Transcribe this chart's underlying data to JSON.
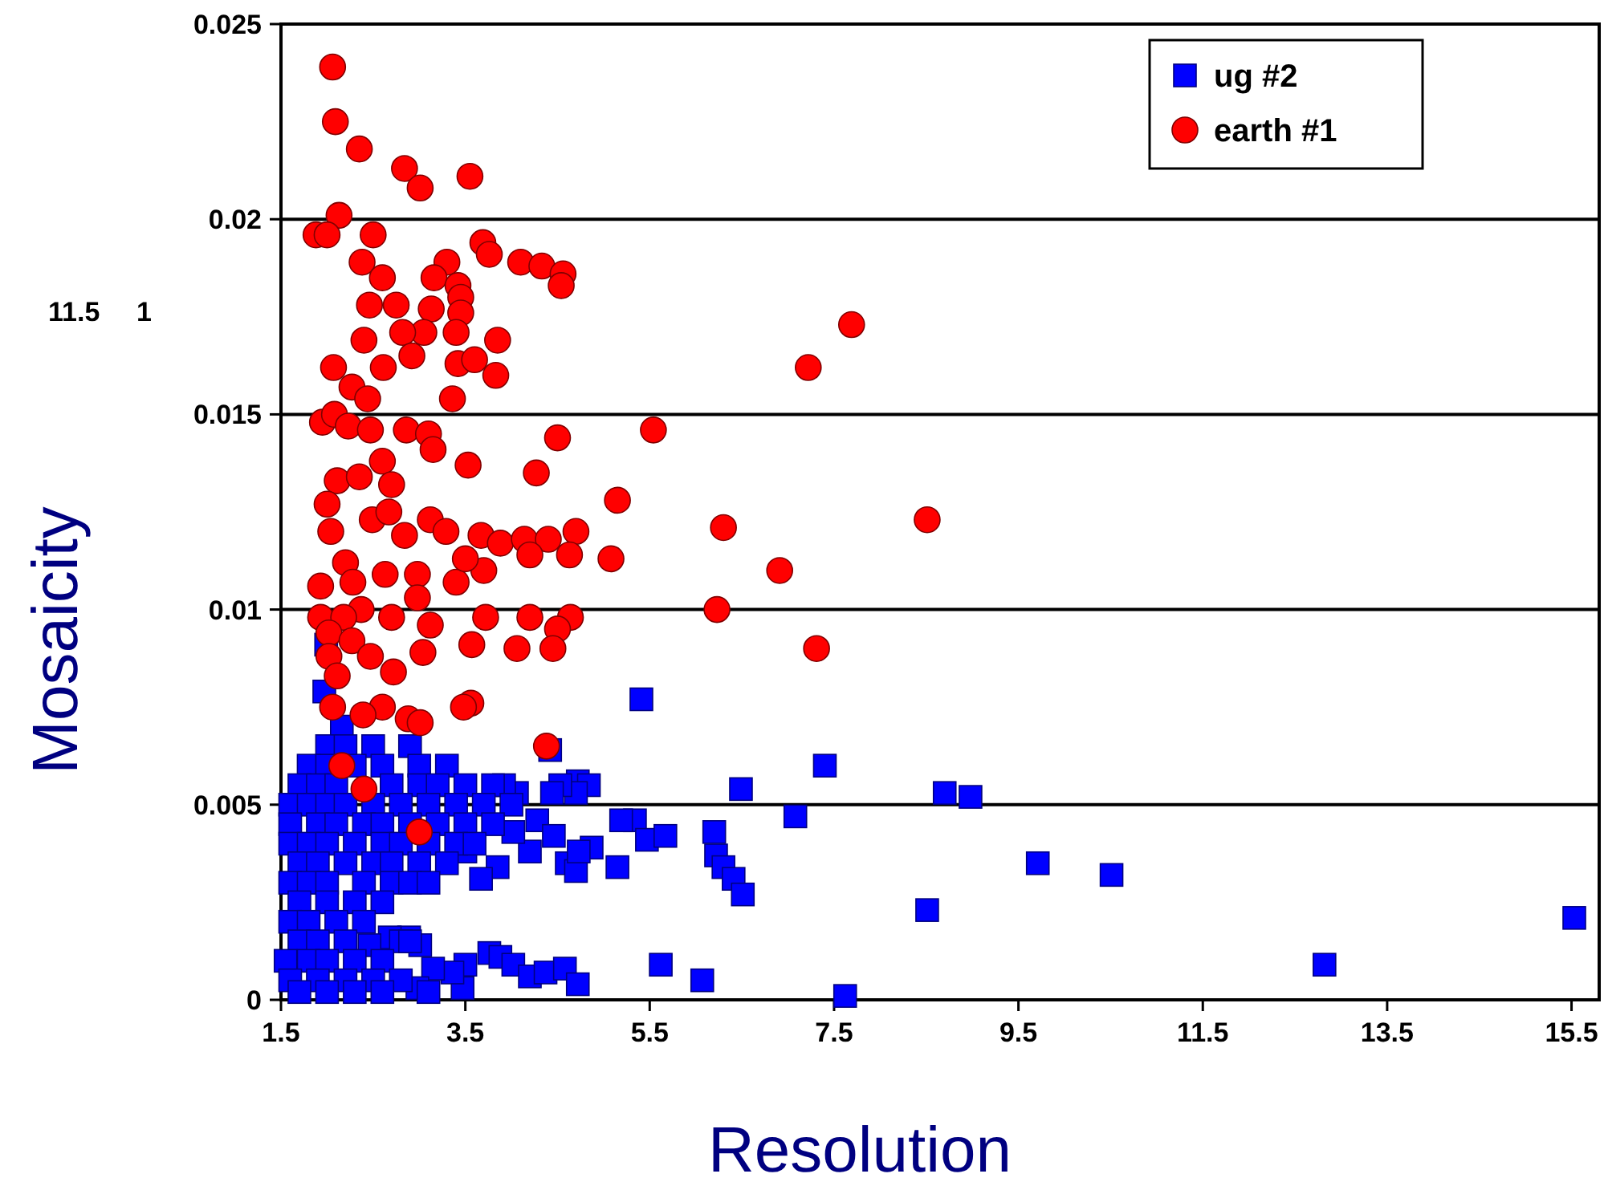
{
  "chart_data": {
    "type": "scatter",
    "xlabel": "Resolution",
    "ylabel": "Mosaicity",
    "xlim": [
      1.5,
      15.8
    ],
    "ylim": [
      0,
      0.025
    ],
    "xticks": [
      1.5,
      3.5,
      5.5,
      7.5,
      9.5,
      11.5,
      13.5,
      15.5
    ],
    "yticks": [
      0,
      0.005,
      0.01,
      0.015,
      0.02,
      0.025
    ],
    "grid": "y",
    "legend": "top right",
    "annotations": [
      "11.5",
      "1"
    ],
    "series": [
      {
        "name": "ug #2",
        "color": "#0000ff",
        "marker": "square",
        "x": [
          5.41,
          7.4,
          6.49,
          8.7,
          8.98,
          7.08,
          6.2,
          6.22,
          6.3,
          6.41,
          6.51,
          9.71,
          10.51,
          8.51,
          15.53,
          12.82,
          5.62,
          6.07,
          7.62,
          5.34,
          5.47,
          5.67,
          5.15,
          4.87,
          4.6,
          4.7,
          4.73,
          5.19,
          4.72,
          4.84,
          4.7,
          4.53,
          4.44,
          4.28,
          4.06,
          3.92,
          4.46,
          4.2,
          4.02,
          3.85,
          3.67,
          3.5,
          3.76,
          3.88,
          4.02,
          4.2,
          4.37,
          4.58,
          4.72,
          3.5,
          3.47,
          3.36,
          3.15,
          3.01,
          2.89,
          2.68,
          2.46,
          2.98,
          1.99,
          1.97,
          2.16,
          4.42,
          2.0,
          2.2,
          2.5,
          2.9,
          1.8,
          2.0,
          2.3,
          2.6,
          3.0,
          3.3,
          1.7,
          1.9,
          2.1,
          2.7,
          3.0,
          3.2,
          3.5,
          3.8,
          1.6,
          1.8,
          2.0,
          2.2,
          2.5,
          2.8,
          3.1,
          3.4,
          3.7,
          4.0,
          1.6,
          1.9,
          2.1,
          2.4,
          2.6,
          2.9,
          3.2,
          3.5,
          3.8,
          1.6,
          1.8,
          2.0,
          2.3,
          2.6,
          2.8,
          3.1,
          3.4,
          3.6,
          1.7,
          1.9,
          2.2,
          2.5,
          2.7,
          3.0,
          3.3,
          1.6,
          1.8,
          2.0,
          2.4,
          2.7,
          2.9,
          3.1,
          1.7,
          2.0,
          2.3,
          2.6,
          1.6,
          1.8,
          2.1,
          2.4,
          1.7,
          1.9,
          2.2,
          2.8,
          2.9,
          1.55,
          1.8,
          2.0,
          2.3,
          2.6,
          1.6,
          1.9,
          2.2,
          2.5,
          2.8,
          1.7,
          2.0,
          2.3,
          2.6,
          3.1
        ],
        "values": [
          0.0077,
          0.006,
          0.0054,
          0.0053,
          0.0052,
          0.0047,
          0.0043,
          0.0037,
          0.0034,
          0.0031,
          0.0027,
          0.0035,
          0.0032,
          0.0023,
          0.0021,
          0.0009,
          0.0009,
          0.0005,
          0.0001,
          0.0046,
          0.0041,
          0.0042,
          0.0034,
          0.0039,
          0.0035,
          0.0033,
          0.0038,
          0.0046,
          0.0056,
          0.0055,
          0.0053,
          0.0055,
          0.0053,
          0.0046,
          0.0053,
          0.0055,
          0.0042,
          0.0038,
          0.0043,
          0.0034,
          0.0031,
          0.0038,
          0.0012,
          0.0011,
          0.0009,
          0.0006,
          0.0007,
          0.0008,
          0.0004,
          0.0009,
          0.0003,
          0.0007,
          0.0008,
          0.0014,
          0.0016,
          0.0016,
          0.0014,
          0.0003,
          0.0091,
          0.0079,
          0.007,
          0.0064,
          0.0065,
          0.0065,
          0.0065,
          0.0065,
          0.006,
          0.006,
          0.006,
          0.006,
          0.006,
          0.006,
          0.0055,
          0.0055,
          0.0055,
          0.0055,
          0.0055,
          0.0055,
          0.0055,
          0.0055,
          0.005,
          0.005,
          0.005,
          0.005,
          0.005,
          0.005,
          0.005,
          0.005,
          0.005,
          0.005,
          0.0045,
          0.0045,
          0.0045,
          0.0045,
          0.0045,
          0.0045,
          0.0045,
          0.0045,
          0.0045,
          0.004,
          0.004,
          0.004,
          0.004,
          0.004,
          0.004,
          0.004,
          0.004,
          0.004,
          0.0035,
          0.0035,
          0.0035,
          0.0035,
          0.0035,
          0.0035,
          0.0035,
          0.003,
          0.003,
          0.003,
          0.003,
          0.003,
          0.003,
          0.003,
          0.0025,
          0.0025,
          0.0025,
          0.0025,
          0.002,
          0.002,
          0.002,
          0.002,
          0.0015,
          0.0015,
          0.0015,
          0.0015,
          0.0015,
          0.001,
          0.001,
          0.001,
          0.001,
          0.001,
          0.0005,
          0.0005,
          0.0005,
          0.0005,
          0.0005,
          0.0002,
          0.0002,
          0.0002,
          0.0002,
          0.0002
        ]
      },
      {
        "name": "earth #1",
        "color": "#ff0000",
        "marker": "circle",
        "x": [
          2.06,
          2.09,
          2.35,
          2.84,
          3.01,
          3.55,
          2.13,
          1.88,
          2.0,
          2.5,
          3.69,
          3.76,
          2.38,
          2.6,
          3.3,
          3.16,
          3.42,
          3.45,
          4.1,
          4.33,
          4.56,
          4.54,
          2.46,
          2.75,
          3.13,
          3.45,
          3.05,
          2.82,
          3.4,
          3.85,
          2.4,
          2.61,
          2.92,
          3.42,
          3.6,
          2.07,
          2.27,
          3.36,
          3.83,
          2.44,
          1.95,
          2.08,
          2.23,
          2.47,
          2.86,
          3.1,
          4.5,
          3.53,
          2.6,
          4.27,
          3.15,
          2.11,
          2.35,
          2.7,
          5.15,
          7.22,
          7.69,
          5.54,
          8.51,
          6.3,
          6.91,
          6.23,
          7.31,
          2.0,
          2.04,
          2.2,
          2.49,
          2.67,
          2.84,
          3.12,
          3.29,
          3.67,
          3.88,
          4.14,
          4.4,
          4.7,
          5.08,
          4.63,
          4.2,
          1.93,
          2.28,
          2.63,
          2.98,
          3.4,
          3.7,
          3.5,
          2.98,
          2.37,
          1.93,
          2.18,
          2.7,
          3.12,
          3.72,
          4.2,
          4.64,
          4.5,
          4.45,
          2.02,
          2.27,
          2.47,
          3.04,
          3.57,
          4.06,
          2.02,
          2.11,
          2.72,
          3.56,
          3.48,
          2.6,
          2.88,
          3.01,
          2.39,
          2.06,
          4.38,
          2.16,
          2.4,
          3.0
        ],
        "values": [
          0.0239,
          0.0225,
          0.0218,
          0.0213,
          0.0208,
          0.0211,
          0.0201,
          0.0196,
          0.0196,
          0.0196,
          0.0194,
          0.0191,
          0.0189,
          0.0185,
          0.0189,
          0.0185,
          0.0183,
          0.018,
          0.0189,
          0.0188,
          0.0186,
          0.0183,
          0.0178,
          0.0178,
          0.0177,
          0.0176,
          0.0171,
          0.0171,
          0.0171,
          0.0169,
          0.0169,
          0.0162,
          0.0165,
          0.0163,
          0.0164,
          0.0162,
          0.0157,
          0.0154,
          0.016,
          0.0154,
          0.0148,
          0.015,
          0.0147,
          0.0146,
          0.0146,
          0.0145,
          0.0144,
          0.0137,
          0.0138,
          0.0135,
          0.0141,
          0.0133,
          0.0134,
          0.0132,
          0.0128,
          0.0162,
          0.0173,
          0.0146,
          0.0123,
          0.0121,
          0.011,
          0.01,
          0.009,
          0.0127,
          0.012,
          0.0112,
          0.0123,
          0.0125,
          0.0119,
          0.0123,
          0.012,
          0.0119,
          0.0117,
          0.0118,
          0.0118,
          0.012,
          0.0113,
          0.0114,
          0.0114,
          0.0106,
          0.0107,
          0.0109,
          0.0109,
          0.0107,
          0.011,
          0.0113,
          0.0103,
          0.01,
          0.0098,
          0.0098,
          0.0098,
          0.0096,
          0.0098,
          0.0098,
          0.0098,
          0.0095,
          0.009,
          0.0094,
          0.0092,
          0.0088,
          0.0089,
          0.0091,
          0.009,
          0.0088,
          0.0083,
          0.0084,
          0.0076,
          0.0075,
          0.0075,
          0.0072,
          0.0071,
          0.0073,
          0.0075,
          0.0065,
          0.006,
          0.0054,
          0.0043
        ]
      }
    ]
  }
}
